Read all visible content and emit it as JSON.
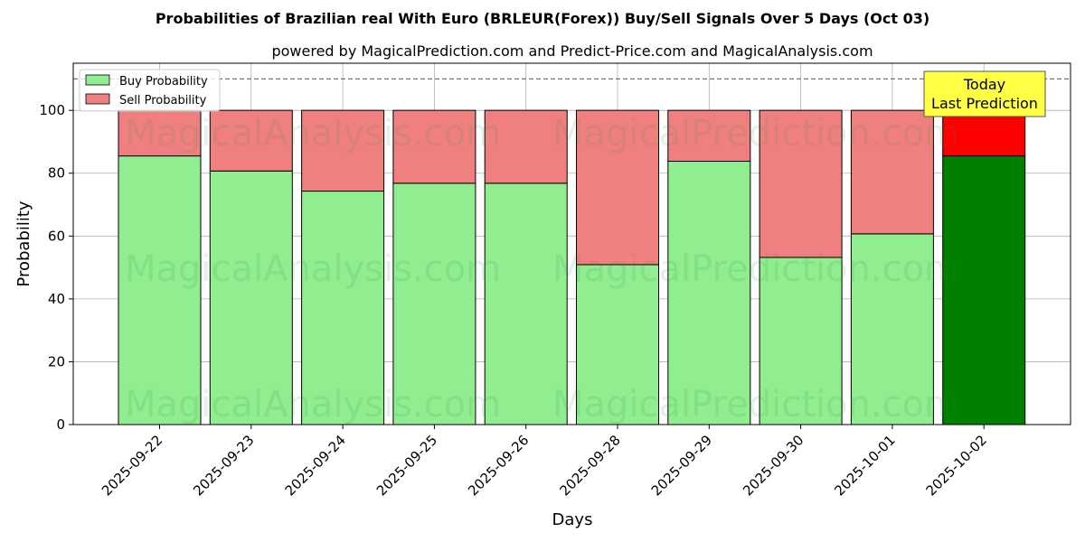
{
  "chart_data": {
    "type": "bar",
    "stacked": true,
    "title": "Probabilities of Brazilian real With Euro (BRLEUR(Forex)) Buy/Sell Signals Over 5 Days (Oct 03)",
    "subtitle": "powered by MagicalPrediction.com and Predict-Price.com and MagicalAnalysis.com",
    "xlabel": "Days",
    "ylabel": "Probability",
    "ylim": [
      0,
      115
    ],
    "yticks": [
      0,
      20,
      40,
      60,
      80,
      100
    ],
    "reference_line": 110,
    "grid": true,
    "legend_position": "top-left",
    "categories": [
      "2025-09-22",
      "2025-09-23",
      "2025-09-24",
      "2025-09-25",
      "2025-09-26",
      "2025-09-28",
      "2025-09-29",
      "2025-09-30",
      "2025-10-01",
      "2025-10-02"
    ],
    "series": [
      {
        "name": "Buy Probability",
        "values": [
          85.5,
          80.7,
          74.3,
          76.8,
          76.8,
          50.9,
          83.8,
          53.2,
          60.7,
          85.5
        ]
      },
      {
        "name": "Sell Probability",
        "values": [
          14.5,
          19.3,
          25.7,
          23.2,
          23.2,
          49.1,
          16.2,
          46.8,
          39.3,
          14.5
        ]
      }
    ],
    "colors": {
      "buy": "#90ee90",
      "sell": "#f08080",
      "buy_highlight": "#008000",
      "sell_highlight": "#ff0000",
      "annotation_bg": "#ffff44"
    },
    "highlight_index": 9,
    "annotation": {
      "line1": "Today",
      "line2": "Last Prediction"
    },
    "watermarks": [
      "MagicalAnalysis.com",
      "MagicalPrediction.com"
    ]
  }
}
